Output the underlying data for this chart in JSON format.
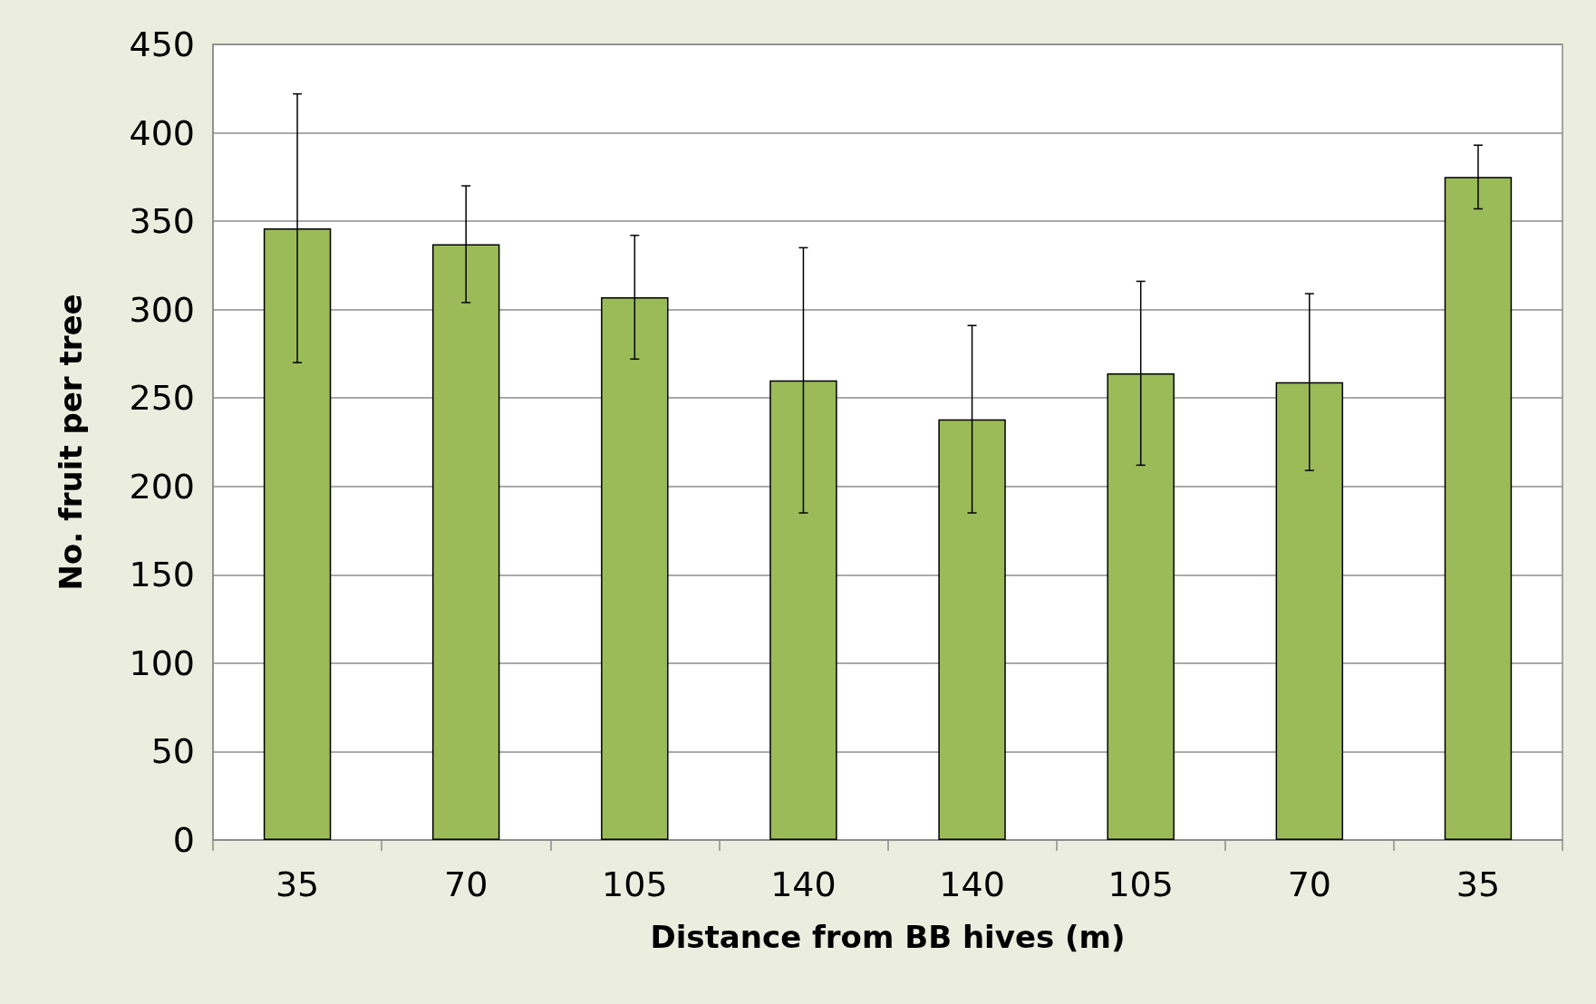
{
  "chart_data": {
    "type": "bar",
    "xlabel": "Distance from BB hives (m)",
    "ylabel": "No. fruit per tree",
    "categories": [
      "35",
      "70",
      "105",
      "140",
      "140",
      "105",
      "70",
      "35"
    ],
    "values": [
      346,
      337,
      307,
      260,
      238,
      264,
      259,
      375
    ],
    "errors": [
      76,
      33,
      35,
      75,
      53,
      52,
      50,
      18
    ],
    "color": "#9bbb59",
    "ylim": [
      0,
      450
    ],
    "yticks": [
      0,
      50,
      100,
      150,
      200,
      250,
      300,
      350,
      400,
      450
    ],
    "grid": "y"
  }
}
